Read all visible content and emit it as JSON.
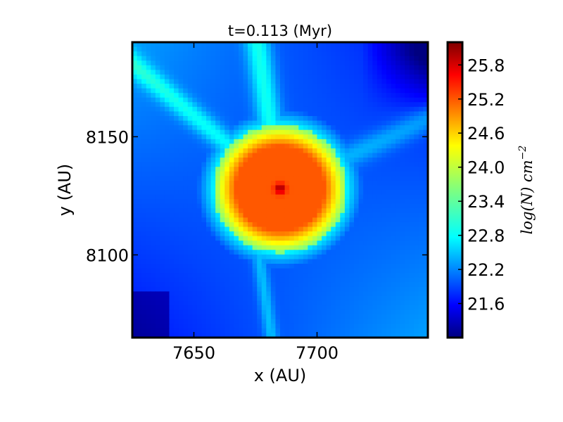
{
  "chart_data": {
    "type": "heatmap",
    "title": "t=0.113 (Myr)",
    "xlabel": "x (AU)",
    "ylabel": "y (AU)",
    "colorbar_label": "log(N) cm^-2",
    "colorbar_label_base": "log(N) cm",
    "colorbar_label_exp": "−2",
    "colormap": "jet",
    "xlim": [
      7625,
      7745
    ],
    "ylim": [
      8065,
      8190
    ],
    "x_ticks": [
      7650,
      7700
    ],
    "y_ticks": [
      8100,
      8150
    ],
    "x_tick_labels": [
      "7650",
      "7700"
    ],
    "y_tick_labels": [
      "8100",
      "8150"
    ],
    "colorbar_range": [
      21.0,
      26.2
    ],
    "colorbar_ticks": [
      21.6,
      22.2,
      22.8,
      23.4,
      24.0,
      24.6,
      25.2,
      25.8
    ],
    "colorbar_tick_labels": [
      "21.6",
      "22.2",
      "22.8",
      "23.4",
      "24.0",
      "24.6",
      "25.2",
      "25.8"
    ],
    "grid": false,
    "features": {
      "core_center": [
        7685,
        8128
      ],
      "core_radius_au": 24,
      "peak_value": 25.8,
      "core_value": 25.1,
      "edge_value": 23.6,
      "background_value": 22.1,
      "min_value": 21.2
    }
  }
}
